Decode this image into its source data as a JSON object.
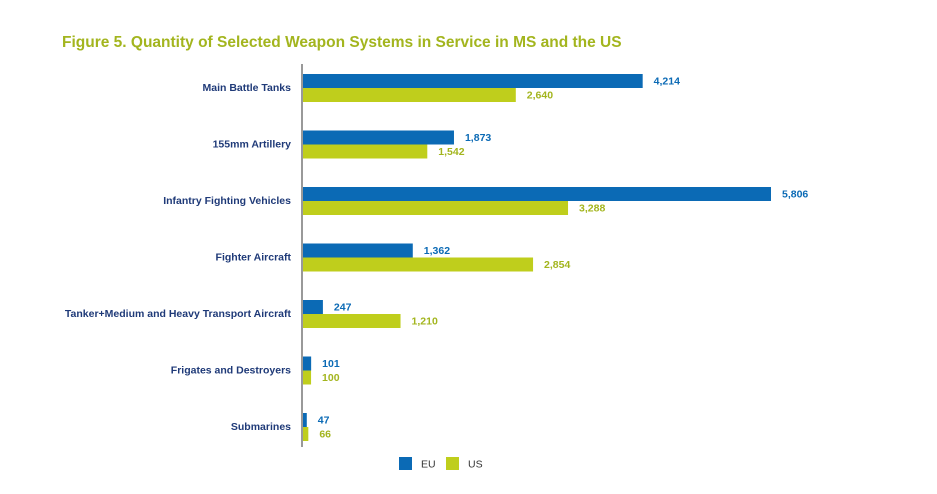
{
  "chart_data": {
    "type": "bar",
    "orientation": "horizontal",
    "title": "Figure 5. Quantity of Selected Weapon Systems in Service in MS and the US",
    "categories": [
      "Main Battle Tanks",
      "155mm Artillery",
      "Infantry Fighting Vehicles",
      "Fighter Aircraft",
      "Tanker+Medium and Heavy Transport Aircraft",
      "Frigates and Destroyers",
      "Submarines"
    ],
    "series": [
      {
        "name": "EU",
        "color": "#0b6ab5",
        "values": [
          4214,
          1873,
          5806,
          1362,
          247,
          101,
          47
        ],
        "labels": [
          "4,214",
          "1,873",
          "5,806",
          "1,362",
          "247",
          "101",
          "47"
        ]
      },
      {
        "name": "US",
        "color": "#bfce1c",
        "values": [
          2640,
          1542,
          3288,
          2854,
          1210,
          100,
          66
        ],
        "labels": [
          "2,640",
          "1,542",
          "3,288",
          "2,854",
          "1,210",
          "100",
          "66"
        ]
      }
    ],
    "xlim": [
      0,
      5806
    ],
    "legend": "bottom",
    "grid": false
  },
  "colors": {
    "title": "#a3b51e",
    "category_label": "#1f3a78",
    "axis": "#333333",
    "eu_label": "#0b6ab5",
    "us_label": "#a3b51e"
  }
}
